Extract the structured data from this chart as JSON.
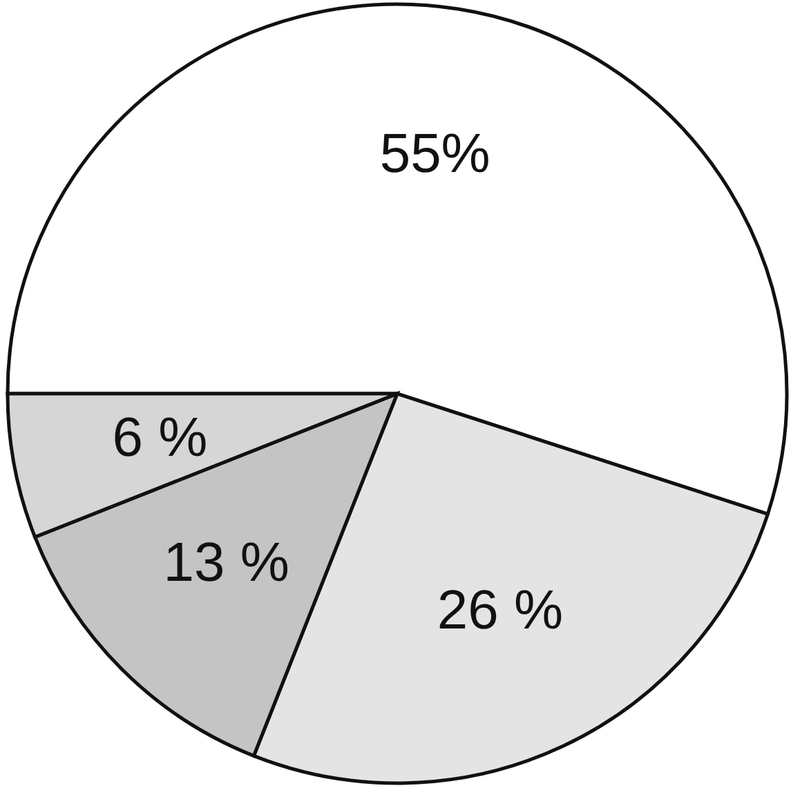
{
  "chart_data": {
    "type": "pie",
    "categories": [
      null,
      null,
      null,
      null
    ],
    "values": [
      55,
      26,
      13,
      6
    ],
    "colors": [
      "#ffffff",
      "#e4e4e4",
      "#c4c4c4",
      "#d6d6d6"
    ],
    "value_labels": [
      "55%",
      "26 %",
      "13 %",
      "6 %"
    ],
    "legend": false
  }
}
